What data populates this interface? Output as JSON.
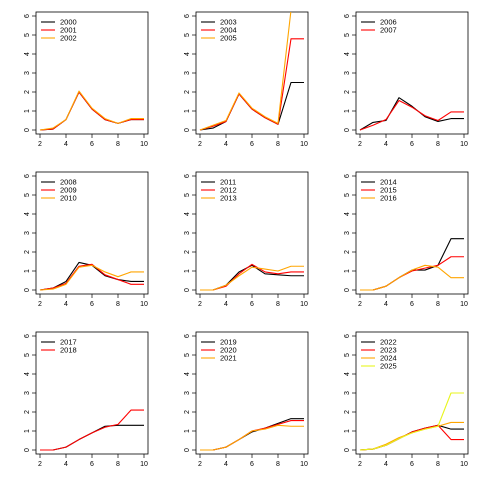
{
  "chart_data": [
    {
      "type": "line",
      "x": [
        2,
        3,
        4,
        5,
        6,
        7,
        8,
        9,
        10
      ],
      "xlim": [
        2,
        10
      ],
      "ylim": [
        0,
        6
      ],
      "xticks": [
        2,
        4,
        6,
        8,
        10
      ],
      "yticks": [
        0,
        1,
        2,
        3,
        4,
        5,
        6
      ],
      "legend_position": "top-left",
      "series": [
        {
          "name": "2000",
          "color": "#000000",
          "values": [
            0.0,
            0.05,
            0.55,
            2.0,
            1.1,
            0.55,
            0.35,
            0.55,
            0.55
          ]
        },
        {
          "name": "2001",
          "color": "#ff0000",
          "values": [
            0.0,
            0.05,
            0.55,
            2.0,
            1.1,
            0.55,
            0.35,
            0.55,
            0.55
          ]
        },
        {
          "name": "2002",
          "color": "#ffa500",
          "values": [
            0.0,
            0.1,
            0.55,
            2.05,
            1.15,
            0.6,
            0.35,
            0.6,
            0.6
          ]
        }
      ]
    },
    {
      "type": "line",
      "x": [
        2,
        3,
        4,
        5,
        6,
        7,
        8,
        9,
        10
      ],
      "xlim": [
        2,
        10
      ],
      "ylim": [
        0,
        6
      ],
      "xticks": [
        2,
        4,
        6,
        8,
        10
      ],
      "yticks": [
        0,
        1,
        2,
        3,
        4,
        5,
        6
      ],
      "legend_position": "top-left",
      "series": [
        {
          "name": "2003",
          "color": "#000000",
          "values": [
            0.0,
            0.1,
            0.45,
            1.9,
            1.1,
            0.65,
            0.3,
            2.5,
            2.5
          ]
        },
        {
          "name": "2004",
          "color": "#ff0000",
          "values": [
            0.0,
            0.2,
            0.45,
            1.9,
            1.1,
            0.65,
            0.3,
            4.8,
            4.8
          ]
        },
        {
          "name": "2005",
          "color": "#ffa500",
          "values": [
            0.0,
            0.25,
            0.5,
            1.95,
            1.15,
            0.7,
            0.35,
            6.3,
            6.3
          ]
        }
      ]
    },
    {
      "type": "line",
      "x": [
        2,
        3,
        4,
        5,
        6,
        7,
        8,
        9,
        10
      ],
      "xlim": [
        2,
        10
      ],
      "ylim": [
        0,
        6
      ],
      "xticks": [
        2,
        4,
        6,
        8,
        10
      ],
      "yticks": [
        0,
        1,
        2,
        3,
        4,
        5,
        6
      ],
      "legend_position": "top-left",
      "series": [
        {
          "name": "2006",
          "color": "#000000",
          "values": [
            0.0,
            0.4,
            0.5,
            1.7,
            1.25,
            0.7,
            0.45,
            0.6,
            0.6
          ]
        },
        {
          "name": "2007",
          "color": "#ff0000",
          "values": [
            0.0,
            0.25,
            0.55,
            1.55,
            1.2,
            0.75,
            0.5,
            0.95,
            0.95
          ]
        }
      ]
    },
    {
      "type": "line",
      "x": [
        2,
        3,
        4,
        5,
        6,
        7,
        8,
        9,
        10
      ],
      "xlim": [
        2,
        10
      ],
      "ylim": [
        0,
        6
      ],
      "xticks": [
        2,
        4,
        6,
        8,
        10
      ],
      "yticks": [
        0,
        1,
        2,
        3,
        4,
        5,
        6
      ],
      "legend_position": "top-left",
      "series": [
        {
          "name": "2008",
          "color": "#000000",
          "values": [
            0.0,
            0.1,
            0.45,
            1.45,
            1.3,
            0.75,
            0.55,
            0.45,
            0.45
          ]
        },
        {
          "name": "2009",
          "color": "#ff0000",
          "values": [
            0.0,
            0.1,
            0.35,
            1.25,
            1.35,
            0.8,
            0.55,
            0.3,
            0.3
          ]
        },
        {
          "name": "2010",
          "color": "#ffa500",
          "values": [
            0.0,
            0.05,
            0.3,
            1.2,
            1.3,
            0.95,
            0.7,
            0.95,
            0.95
          ]
        }
      ]
    },
    {
      "type": "line",
      "x": [
        2,
        3,
        4,
        5,
        6,
        7,
        8,
        9,
        10
      ],
      "xlim": [
        2,
        10
      ],
      "ylim": [
        0,
        6
      ],
      "xticks": [
        2,
        4,
        6,
        8,
        10
      ],
      "yticks": [
        0,
        1,
        2,
        3,
        4,
        5,
        6
      ],
      "legend_position": "top-left",
      "series": [
        {
          "name": "2011",
          "color": "#000000",
          "values": [
            0.0,
            0.0,
            0.25,
            0.95,
            1.3,
            0.85,
            0.8,
            0.75,
            0.75
          ]
        },
        {
          "name": "2012",
          "color": "#ff0000",
          "values": [
            0.0,
            0.0,
            0.2,
            0.85,
            1.35,
            0.95,
            0.85,
            0.95,
            0.95
          ]
        },
        {
          "name": "2013",
          "color": "#ffa500",
          "values": [
            0.0,
            0.0,
            0.25,
            0.75,
            1.2,
            1.1,
            1.0,
            1.25,
            1.25
          ]
        }
      ]
    },
    {
      "type": "line",
      "x": [
        2,
        3,
        4,
        5,
        6,
        7,
        8,
        9,
        10
      ],
      "xlim": [
        2,
        10
      ],
      "ylim": [
        0,
        6
      ],
      "xticks": [
        2,
        4,
        6,
        8,
        10
      ],
      "yticks": [
        0,
        1,
        2,
        3,
        4,
        5,
        6
      ],
      "legend_position": "top-left",
      "series": [
        {
          "name": "2014",
          "color": "#000000",
          "values": [
            0.0,
            0.0,
            0.2,
            0.65,
            1.05,
            1.05,
            1.3,
            2.7,
            2.7
          ]
        },
        {
          "name": "2015",
          "color": "#ff0000",
          "values": [
            0.0,
            0.0,
            0.2,
            0.65,
            1.0,
            1.15,
            1.3,
            1.75,
            1.75
          ]
        },
        {
          "name": "2016",
          "color": "#ffa500",
          "values": [
            0.0,
            0.0,
            0.2,
            0.65,
            1.05,
            1.3,
            1.2,
            0.65,
            0.65
          ]
        }
      ]
    },
    {
      "type": "line",
      "x": [
        2,
        3,
        4,
        5,
        6,
        7,
        8,
        9,
        10
      ],
      "xlim": [
        2,
        10
      ],
      "ylim": [
        0,
        6
      ],
      "xticks": [
        2,
        4,
        6,
        8,
        10
      ],
      "yticks": [
        0,
        1,
        2,
        3,
        4,
        5,
        6
      ],
      "legend_position": "top-left",
      "series": [
        {
          "name": "2017",
          "color": "#000000",
          "values": [
            0.0,
            0.0,
            0.15,
            0.55,
            0.9,
            1.25,
            1.3,
            1.3,
            1.3
          ]
        },
        {
          "name": "2018",
          "color": "#ff0000",
          "values": [
            0.0,
            0.0,
            0.15,
            0.55,
            0.9,
            1.2,
            1.35,
            2.1,
            2.1
          ]
        }
      ]
    },
    {
      "type": "line",
      "x": [
        2,
        3,
        4,
        5,
        6,
        7,
        8,
        9,
        10
      ],
      "xlim": [
        2,
        10
      ],
      "ylim": [
        0,
        6
      ],
      "xticks": [
        2,
        4,
        6,
        8,
        10
      ],
      "yticks": [
        0,
        1,
        2,
        3,
        4,
        5,
        6
      ],
      "legend_position": "top-left",
      "series": [
        {
          "name": "2019",
          "color": "#000000",
          "values": [
            0.0,
            0.0,
            0.15,
            0.55,
            0.95,
            1.15,
            1.4,
            1.65,
            1.65
          ]
        },
        {
          "name": "2020",
          "color": "#ff0000",
          "values": [
            0.0,
            0.0,
            0.15,
            0.55,
            1.0,
            1.15,
            1.35,
            1.55,
            1.55
          ]
        },
        {
          "name": "2021",
          "color": "#ffa500",
          "values": [
            0.0,
            0.0,
            0.15,
            0.55,
            1.0,
            1.1,
            1.3,
            1.25,
            1.25
          ]
        }
      ]
    },
    {
      "type": "line",
      "x": [
        2,
        3,
        4,
        5,
        6,
        7,
        8,
        9,
        10
      ],
      "xlim": [
        2,
        10
      ],
      "ylim": [
        0,
        6
      ],
      "xticks": [
        2,
        4,
        6,
        8,
        10
      ],
      "yticks": [
        0,
        1,
        2,
        3,
        4,
        5,
        6
      ],
      "legend_position": "top-left",
      "series": [
        {
          "name": "2022",
          "color": "#000000",
          "values": [
            0.0,
            0.05,
            0.25,
            0.6,
            0.95,
            1.15,
            1.3,
            1.1,
            1.1
          ]
        },
        {
          "name": "2023",
          "color": "#ff0000",
          "values": [
            0.0,
            0.05,
            0.25,
            0.6,
            0.95,
            1.15,
            1.3,
            0.55,
            0.55
          ]
        },
        {
          "name": "2024",
          "color": "#ffa500",
          "values": [
            0.0,
            0.05,
            0.3,
            0.65,
            0.9,
            1.1,
            1.25,
            1.45,
            1.45
          ]
        },
        {
          "name": "2025",
          "color": "#e8f51e",
          "values": [
            0.0,
            0.05,
            0.25,
            0.6,
            0.9,
            1.1,
            1.25,
            3.0,
            3.0
          ]
        }
      ]
    }
  ]
}
